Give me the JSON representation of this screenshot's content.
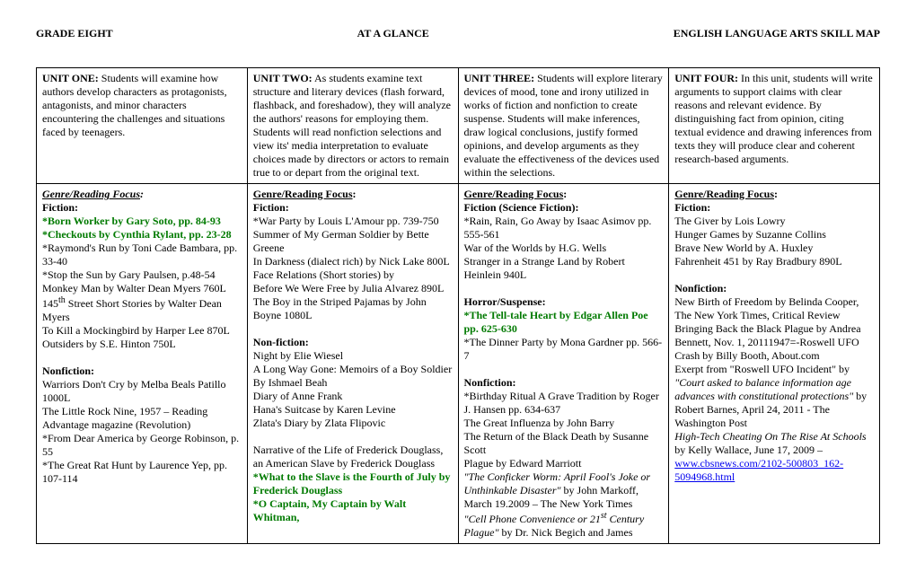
{
  "header": {
    "left": "GRADE EIGHT",
    "center": "AT A GLANCE",
    "right": "ENGLISH LANGUAGE ARTS SKILL MAP"
  },
  "units": {
    "u1": {
      "title": "UNIT ONE:",
      "desc": "  Students will examine how authors develop characters as protagonists, antagonists, and minor characters encountering the challenges and situations faced by teenagers."
    },
    "u2": {
      "title": "UNIT TWO:",
      "desc": " As students examine text structure and literary devices (flash forward, flashback, and foreshadow), they will analyze the authors' reasons for employing them. Students will read nonfiction selections and view its' media interpretation to evaluate choices made by directors or actors to remain true to or depart from the original text."
    },
    "u3": {
      "title": "UNIT THREE:",
      "desc": "  Students will explore literary devices of mood, tone and irony utilized in works of fiction and nonfiction to create suspense.   Students will make inferences, draw logical conclusions, justify formed opinions, and develop arguments as they evaluate the effectiveness of the devices used within the selections."
    },
    "u4": {
      "title": "UNIT FOUR:",
      "desc": "   In this unit, students will write arguments to support claims with clear reasons and relevant evidence.  By distinguishing fact from opinion, citing textual evidence and drawing inferences from texts they will produce clear and coherent research-based arguments."
    }
  },
  "labels": {
    "grf": "Genre/Reading Focus",
    "fiction": "Fiction:",
    "fiction_sf": "Fiction (Science Fiction):",
    "horror": "Horror/Suspense:",
    "nonfiction": "Nonfiction:",
    "nonfiction2": "Non-fiction:"
  },
  "c1": {
    "f1": "*Born Worker by Gary Soto, pp. 84-93",
    "f2": "*Checkouts by Cynthia Rylant, pp. 23-28",
    "f3": "*Raymond's Run by Toni Cade Bambara, pp. 33-40",
    "f4": "*Stop the Sun by Gary Paulsen, p.48-54",
    "f5": "Monkey Man by Walter Dean Myers 760L",
    "f6a": "145",
    "f6b": "th",
    "f6c": " Street Short Stories by Walter Dean Myers",
    "f7": "To Kill a Mockingbird by Harper Lee 870L",
    "f8": "Outsiders by S.E. Hinton 750L",
    "n1": "Warriors Don't Cry by Melba Beals Patillo 1000L",
    "n2": "The Little Rock Nine, 1957 – Reading Advantage magazine (Revolution)",
    "n3": "*From Dear America by George Robinson, p. 55",
    "n4": "*The Great Rat Hunt by Laurence Yep, pp. 107-114"
  },
  "c2": {
    "f1": "*War Party by Louis L'Amour pp. 739-750",
    "f2": "Summer of My German Soldier by Bette Greene",
    "f3": "In Darkness (dialect rich) by Nick Lake 800L",
    "f4": "Face Relations (Short stories) by",
    "f5": "Before We Were Free by Julia Alvarez 890L",
    "f6": "The Boy in the Striped Pajamas by John Boyne 1080L",
    "n1": "Night by Elie Wiesel",
    "n2": "A Long Way Gone:  Memoirs of a Boy Soldier By Ishmael Beah",
    "n3": "Diary of Anne Frank",
    "n4": "Hana's Suitcase by Karen Levine",
    "n5": "Zlata's Diary by Zlata Flipovic",
    "n6": "Narrative of the Life of Frederick Douglass, an American Slave by Frederick Douglass",
    "g1": "*What to the Slave is the Fourth of July by Frederick Douglass",
    "g2": "*O Captain, My Captain by Walt Whitman,"
  },
  "c3": {
    "f1": "*Rain, Rain, Go Away by Isaac Asimov pp. 555-561",
    "f2": "War of the Worlds by H.G. Wells",
    "f3": "Stranger in a Strange Land by Robert Heinlein 940L",
    "h1": "*The Tell-tale Heart by Edgar Allen Poe pp. 625-630",
    "h2": "*The Dinner Party by Mona Gardner pp. 566-7",
    "n1": "*Birthday Ritual A Grave Tradition by Roger J. Hansen pp. 634-637",
    "n2": "The Great Influenza by John Barry",
    "n3": "The Return of the Black Death by Susanne Scott",
    "n4": "Plague by Edward Marriott",
    "n5a": "\"The Conficker Worm: April Fool's Joke or Unthinkable Disaster\"",
    "n5b": " by John Markoff, March 19.2009 – The New York Times",
    "n6a": "\"Cell Phone Convenience or 21",
    "n6b": "st",
    "n6c": " Century Plague\"",
    "n6d": " by Dr. Nick Begich and James"
  },
  "c4": {
    "f1": "The Giver by Lois Lowry",
    "f2": "Hunger Games by Suzanne Collins",
    "f3": "Brave New World by A. Huxley",
    "f4": "Fahrenheit 451 by Ray Bradbury 890L",
    "n1": "New Birth of Freedom by Belinda Cooper, The New York Times, Critical Review",
    "n2": "Bringing Back the Black Plague by Andrea Bennett, Nov. 1, 20111947=-Roswell UFO Crash by Billy Booth, About.com",
    "n3a": "Exerpt from \"Roswell UFO Incident\" by",
    "n3b": "\"Court asked to balance information age advances with constitutional protections\"",
    "n3c": "by Robert Barnes, April 24, 2011 -  The Washington Post",
    "n4a": "High-Tech Cheating On The Rise At Schools",
    "n4b": " by Kelly Wallace, June 17, 2009 – ",
    "link": "www.cbsnews.com/2102-500803_162-5094968.html"
  }
}
